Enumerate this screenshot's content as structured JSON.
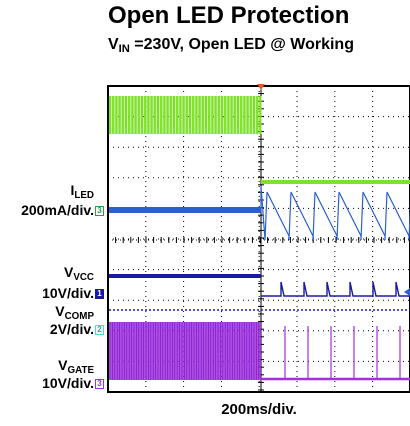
{
  "title": "Open LED Protection",
  "subtitle": {
    "v": "V",
    "sub": "IN",
    "rest": " =230V, Open LED @ Working"
  },
  "channels": [
    {
      "name_main": "I",
      "name_sub": "LED",
      "scale": "200mA/div.",
      "marker": "3",
      "color": "#2a5fd0"
    },
    {
      "name_main": "V",
      "name_sub": "VCC",
      "scale": "10V/div.",
      "marker": "1",
      "color": "#1a1aa0"
    },
    {
      "name_main": "V",
      "name_sub": "COMP",
      "scale": "2V/div.",
      "marker": "2",
      "color": "#3ee6c8"
    },
    {
      "name_main": "V",
      "name_sub": "GATE",
      "scale": "10V/div.",
      "marker": "3",
      "color": "#a030e0"
    }
  ],
  "xlabel": "200ms/div.",
  "chart_data": {
    "type": "line",
    "timebase": "200ms/div.",
    "event": "Open LED at trigger (center of screen)",
    "series": [
      {
        "color": "#7ee02a",
        "before": "switching waveform",
        "after": "flat high level"
      },
      {
        "name": "ILED",
        "color": "#2a5fd0",
        "before": "steady",
        "after": "sawtooth ramps"
      },
      {
        "name": "VCC",
        "color": "#1a1aa0",
        "before": "steady",
        "after": "periodic pulses"
      },
      {
        "name": "VCOMP",
        "color": "#3ee6c8",
        "before": "steady",
        "after": "periodic pulses"
      },
      {
        "name": "VGATE",
        "color": "#a030e0",
        "before": "dense switching",
        "after": "sparse pulses"
      }
    ]
  }
}
